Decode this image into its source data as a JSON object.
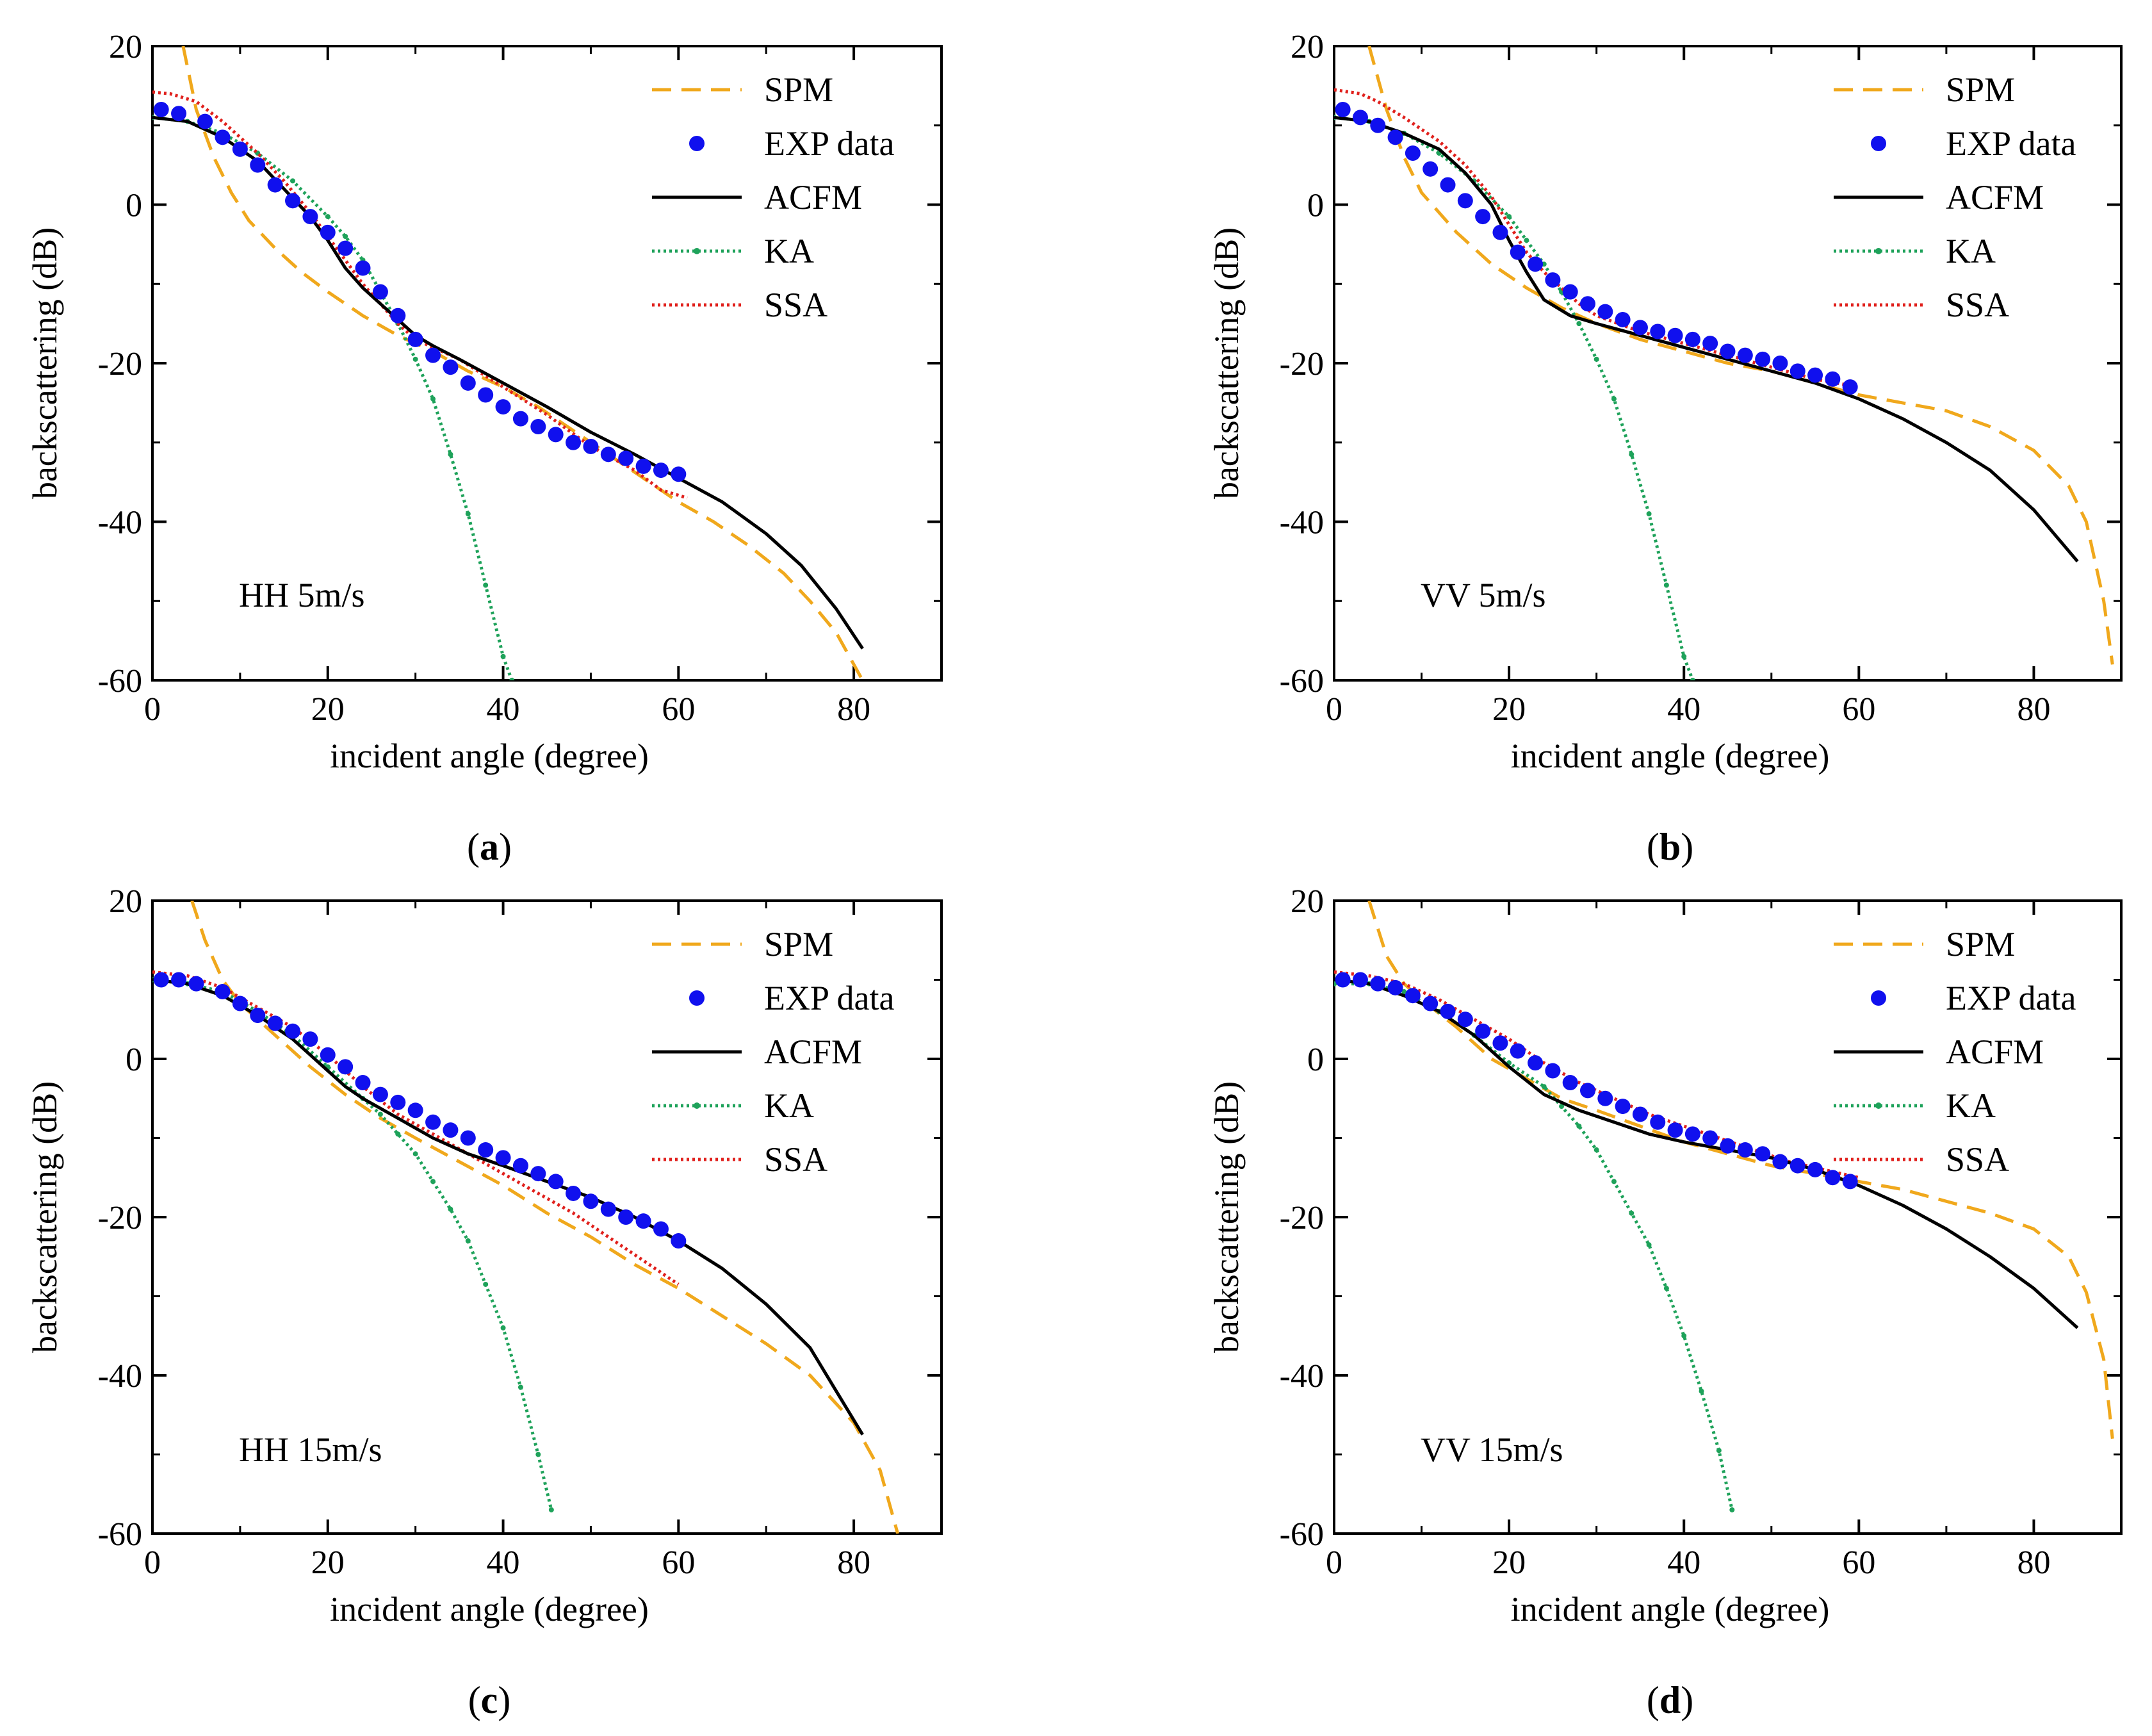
{
  "colors": {
    "SPM": "#F0A81C",
    "EXP data": "#1010EE",
    "ACFM": "#000000",
    "KA": "#1EA25A",
    "SSA": "#E0201C"
  },
  "chart_data": [
    {
      "type": "line",
      "panel_label": "a",
      "annotation": "HH 5m/s",
      "xlabel": "incident angle (degree)",
      "ylabel": "backscattering (dB)",
      "xlim": [
        0,
        90
      ],
      "ylim": [
        -60,
        20
      ],
      "xticks": [
        "0",
        "20",
        "40",
        "60",
        "80"
      ],
      "yticks": [
        "20",
        "0",
        "-20",
        "-40",
        "-60"
      ],
      "legend": [
        "SPM",
        "EXP data",
        "ACFM",
        "KA",
        "SSA"
      ],
      "series": [
        {
          "name": "SPM",
          "style": "dashed",
          "x": [
            3.5,
            5,
            7,
            9,
            11,
            14,
            17,
            20,
            24,
            28,
            32,
            36,
            40,
            44,
            48,
            52,
            56,
            60,
            64,
            68,
            72,
            75,
            78,
            80,
            81
          ],
          "y": [
            20,
            12,
            6,
            1.5,
            -2,
            -5.5,
            -8.5,
            -11,
            -14,
            -16.5,
            -18.5,
            -21,
            -23,
            -25.5,
            -28.5,
            -31.5,
            -34.5,
            -37.5,
            -40,
            -43,
            -46.5,
            -50,
            -54,
            -58,
            -60
          ]
        },
        {
          "name": "EXP data",
          "style": "markers",
          "x": [
            1,
            3,
            6,
            8,
            10,
            12,
            14,
            16,
            18,
            20,
            22,
            24,
            26,
            28,
            30,
            32,
            34,
            36,
            38,
            40,
            42,
            44,
            46,
            48,
            50,
            52,
            54,
            56,
            58,
            60
          ],
          "y": [
            12,
            11.5,
            10.5,
            8.5,
            7,
            5,
            2.5,
            0.5,
            -1.5,
            -3.5,
            -5.5,
            -8,
            -11,
            -14,
            -17,
            -19,
            -20.5,
            -22.5,
            -24,
            -25.5,
            -27,
            -28,
            -29,
            -30,
            -30.5,
            -31.5,
            -32,
            -33,
            -33.5,
            -34
          ]
        },
        {
          "name": "ACFM",
          "style": "solid",
          "x": [
            0,
            4,
            8,
            12,
            15,
            18,
            20,
            22,
            24,
            26,
            28,
            30,
            32,
            35,
            40,
            45,
            50,
            55,
            60,
            65,
            70,
            74,
            78,
            81
          ],
          "y": [
            11,
            10.5,
            8.5,
            5.5,
            2,
            -1.5,
            -4.5,
            -8,
            -10.5,
            -12.5,
            -14.5,
            -16.5,
            -17.8,
            -19.5,
            -22.5,
            -25.5,
            -28.7,
            -31.5,
            -34.5,
            -37.5,
            -41.5,
            -45.5,
            -51,
            -56
          ]
        },
        {
          "name": "KA",
          "style": "dotted",
          "x": [
            0,
            4,
            8,
            12,
            16,
            20,
            22,
            24,
            26,
            28,
            30,
            32,
            34,
            36,
            38,
            40,
            41
          ],
          "y": [
            11,
            10.5,
            9,
            6.5,
            3,
            -1.5,
            -4,
            -7,
            -11,
            -15,
            -19.5,
            -24.5,
            -31.5,
            -39,
            -48,
            -57,
            -60
          ]
        },
        {
          "name": "SSA",
          "style": "dotted",
          "x": [
            0,
            2,
            5,
            8,
            12,
            15,
            18,
            20,
            22,
            24,
            26,
            28,
            30,
            35,
            40,
            45,
            50,
            55,
            58,
            61
          ],
          "y": [
            14.2,
            14,
            13,
            10.5,
            6.5,
            3,
            -1,
            -4,
            -7,
            -10,
            -12.5,
            -15,
            -17,
            -19.5,
            -23,
            -26.5,
            -30.5,
            -33.5,
            -36,
            -37
          ]
        }
      ]
    },
    {
      "type": "line",
      "panel_label": "b",
      "annotation": "VV 5m/s",
      "xlabel": "incident angle (degree)",
      "ylabel": "backscattering (dB)",
      "xlim": [
        0,
        90
      ],
      "ylim": [
        -60,
        20
      ],
      "xticks": [
        "0",
        "20",
        "40",
        "60",
        "80"
      ],
      "yticks": [
        "20",
        "0",
        "-20",
        "-40",
        "-60"
      ],
      "legend": [
        "SPM",
        "EXP data",
        "ACFM",
        "KA",
        "SSA"
      ],
      "series": [
        {
          "name": "SPM",
          "style": "dashed",
          "x": [
            4,
            6,
            8,
            10,
            14,
            18,
            22,
            26,
            30,
            35,
            40,
            45,
            50,
            55,
            60,
            65,
            70,
            75,
            80,
            84,
            86,
            88,
            89
          ],
          "y": [
            20,
            12,
            6,
            1.5,
            -3.5,
            -7.5,
            -10.5,
            -13,
            -15,
            -17,
            -18.5,
            -20,
            -21,
            -22.5,
            -24,
            -25,
            -26,
            -28,
            -31,
            -35.5,
            -40,
            -50,
            -58
          ]
        },
        {
          "name": "EXP data",
          "style": "markers",
          "x": [
            1,
            3,
            5,
            7,
            9,
            11,
            13,
            15,
            17,
            19,
            21,
            23,
            25,
            27,
            29,
            31,
            33,
            35,
            37,
            39,
            41,
            43,
            45,
            47,
            49,
            51,
            53,
            55,
            57,
            59
          ],
          "y": [
            12,
            11,
            10,
            8.5,
            6.5,
            4.5,
            2.5,
            0.5,
            -1.5,
            -3.5,
            -6,
            -7.5,
            -9.5,
            -11,
            -12.5,
            -13.5,
            -14.5,
            -15.5,
            -16,
            -16.5,
            -17,
            -17.5,
            -18.5,
            -19,
            -19.5,
            -20,
            -21,
            -21.5,
            -22,
            -23
          ]
        },
        {
          "name": "ACFM",
          "style": "solid",
          "x": [
            0,
            4,
            8,
            12,
            15,
            18,
            20,
            22,
            24,
            27,
            30,
            35,
            40,
            45,
            50,
            55,
            60,
            65,
            70,
            75,
            80,
            85
          ],
          "y": [
            11,
            10.5,
            9,
            7,
            4,
            0,
            -4.5,
            -8.5,
            -12,
            -14,
            -15,
            -16.5,
            -18,
            -19.5,
            -21,
            -22.5,
            -24.5,
            -27,
            -30,
            -33.5,
            -38.5,
            -45
          ]
        },
        {
          "name": "KA",
          "style": "dotted",
          "x": [
            0,
            4,
            8,
            12,
            16,
            20,
            22,
            24,
            26,
            28,
            30,
            32,
            34,
            36,
            38,
            40,
            41
          ],
          "y": [
            11,
            10.5,
            9,
            6.5,
            3,
            -1.5,
            -4.5,
            -7.5,
            -11,
            -15,
            -19.5,
            -24.5,
            -31.5,
            -39,
            -48,
            -57,
            -60
          ]
        },
        {
          "name": "SSA",
          "style": "dotted",
          "x": [
            0,
            3,
            5,
            8,
            12,
            15,
            18,
            20,
            22,
            24,
            26,
            28,
            30,
            35,
            40,
            45,
            50,
            55,
            60
          ],
          "y": [
            14.5,
            14,
            13,
            11,
            8,
            5,
            1,
            -2.5,
            -6,
            -8.5,
            -10.5,
            -12.5,
            -14,
            -16,
            -17.5,
            -19,
            -20.5,
            -22,
            -23
          ]
        }
      ]
    },
    {
      "type": "line",
      "panel_label": "c",
      "annotation": "HH 15m/s",
      "xlabel": "incident angle (degree)",
      "ylabel": "backscattering (dB)",
      "xlim": [
        0,
        90
      ],
      "ylim": [
        -60,
        20
      ],
      "xticks": [
        "0",
        "20",
        "40",
        "60",
        "80"
      ],
      "yticks": [
        "20",
        "0",
        "-20",
        "-40",
        "-60"
      ],
      "legend": [
        "SPM",
        "EXP data",
        "ACFM",
        "KA",
        "SSA"
      ],
      "series": [
        {
          "name": "SPM",
          "style": "dashed",
          "x": [
            4.5,
            6,
            8,
            10,
            14,
            18,
            22,
            26,
            30,
            35,
            40,
            45,
            50,
            55,
            60,
            65,
            70,
            75,
            80,
            83,
            85
          ],
          "y": [
            20,
            15,
            10,
            7,
            3,
            -1,
            -4.5,
            -7.5,
            -10,
            -13,
            -16,
            -19.5,
            -22.5,
            -26,
            -29,
            -32.5,
            -36,
            -40,
            -46,
            -52,
            -60
          ]
        },
        {
          "name": "EXP data",
          "style": "markers",
          "x": [
            1,
            3,
            5,
            8,
            10,
            12,
            14,
            16,
            18,
            20,
            22,
            24,
            26,
            28,
            30,
            32,
            34,
            36,
            38,
            40,
            42,
            44,
            46,
            48,
            50,
            52,
            54,
            56,
            58,
            60
          ],
          "y": [
            10,
            10,
            9.5,
            8.5,
            7,
            5.5,
            4.5,
            3.5,
            2.5,
            0.5,
            -1,
            -3,
            -4.5,
            -5.5,
            -6.5,
            -8,
            -9,
            -10,
            -11.5,
            -12.5,
            -13.5,
            -14.5,
            -15.5,
            -17,
            -18,
            -19,
            -20,
            -20.5,
            -21.5,
            -23
          ]
        },
        {
          "name": "ACFM",
          "style": "solid",
          "x": [
            0,
            4,
            8,
            12,
            16,
            18,
            20,
            22,
            24,
            28,
            32,
            36,
            40,
            45,
            50,
            55,
            60,
            65,
            70,
            75,
            78,
            81
          ],
          "y": [
            10,
            9.5,
            8,
            5.5,
            2.5,
            0.5,
            -1.5,
            -3.5,
            -5,
            -7.5,
            -10,
            -12,
            -13.5,
            -15.5,
            -17.5,
            -20,
            -23,
            -26.5,
            -31,
            -36.5,
            -42,
            -47.5
          ]
        },
        {
          "name": "KA",
          "style": "dotted",
          "x": [
            0,
            4,
            8,
            12,
            16,
            20,
            24,
            26,
            28,
            30,
            32,
            34,
            36,
            38,
            40,
            42,
            44,
            45.5
          ],
          "y": [
            10,
            9.5,
            8.5,
            6,
            3,
            -1,
            -5,
            -7,
            -9.5,
            -12,
            -15.5,
            -19,
            -23,
            -28.5,
            -34,
            -41.5,
            -50,
            -57
          ]
        },
        {
          "name": "SSA",
          "style": "dotted",
          "x": [
            0,
            4,
            8,
            12,
            16,
            20,
            24,
            28,
            32,
            36,
            40,
            44,
            48,
            52,
            56,
            60
          ],
          "y": [
            11,
            10.5,
            9,
            6.5,
            4,
            0.5,
            -3.5,
            -7,
            -9.5,
            -12,
            -14.5,
            -17,
            -19.5,
            -22.5,
            -25.5,
            -28.5
          ]
        }
      ]
    },
    {
      "type": "line",
      "panel_label": "d",
      "annotation": "VV 15m/s",
      "xlabel": "incident angle (degree)",
      "ylabel": "backscattering (dB)",
      "xlim": [
        0,
        90
      ],
      "ylim": [
        -60,
        20
      ],
      "xticks": [
        "0",
        "20",
        "40",
        "60",
        "80"
      ],
      "yticks": [
        "20",
        "0",
        "-20",
        "-40",
        "-60"
      ],
      "legend": [
        "SPM",
        "EXP data",
        "ACFM",
        "KA",
        "SSA"
      ],
      "series": [
        {
          "name": "SPM",
          "style": "dashed",
          "x": [
            4,
            6,
            8,
            10,
            14,
            18,
            22,
            26,
            30,
            35,
            40,
            45,
            50,
            55,
            60,
            65,
            70,
            75,
            80,
            84,
            86,
            88,
            89
          ],
          "y": [
            20,
            13,
            9.5,
            7.5,
            4,
            0,
            -2.5,
            -5,
            -6.5,
            -8.5,
            -10.5,
            -12,
            -13.5,
            -14.5,
            -15.5,
            -16.5,
            -18,
            -19.5,
            -21.5,
            -25,
            -29.5,
            -38,
            -48
          ]
        },
        {
          "name": "EXP data",
          "style": "markers",
          "x": [
            1,
            3,
            5,
            7,
            9,
            11,
            13,
            15,
            17,
            19,
            21,
            23,
            25,
            27,
            29,
            31,
            33,
            35,
            37,
            39,
            41,
            43,
            45,
            47,
            49,
            51,
            53,
            55,
            57,
            59
          ],
          "y": [
            10,
            10,
            9.5,
            9,
            8,
            7,
            6,
            5,
            3.5,
            2,
            1,
            -0.5,
            -1.5,
            -3,
            -4,
            -5,
            -6,
            -7,
            -8,
            -9,
            -9.5,
            -10,
            -11,
            -11.5,
            -12,
            -13,
            -13.5,
            -14,
            -15,
            -15.5
          ]
        },
        {
          "name": "ACFM",
          "style": "solid",
          "x": [
            0,
            4,
            8,
            12,
            16,
            20,
            24,
            28,
            32,
            36,
            40,
            45,
            50,
            55,
            60,
            65,
            70,
            75,
            80,
            85
          ],
          "y": [
            10,
            9.5,
            8,
            6,
            3,
            -1,
            -4.5,
            -6.5,
            -8,
            -9.5,
            -10.5,
            -11.5,
            -12.5,
            -14,
            -16,
            -18.5,
            -21.5,
            -25,
            -29,
            -34
          ]
        },
        {
          "name": "KA",
          "style": "dotted",
          "x": [
            0,
            4,
            8,
            12,
            16,
            20,
            24,
            26,
            28,
            30,
            32,
            34,
            36,
            38,
            40,
            42,
            44,
            45.5
          ],
          "y": [
            9.5,
            9.5,
            8.5,
            6,
            3,
            -0.5,
            -3.5,
            -6,
            -8.5,
            -11.5,
            -15.5,
            -19.5,
            -23.5,
            -29,
            -35,
            -42,
            -49.5,
            -57
          ]
        },
        {
          "name": "SSA",
          "style": "dotted",
          "x": [
            0,
            4,
            8,
            12,
            16,
            20,
            24,
            28,
            32,
            36,
            40,
            44,
            48,
            52,
            56,
            60
          ],
          "y": [
            11,
            10.5,
            9.5,
            7.5,
            5,
            2.5,
            -0.5,
            -3,
            -5,
            -7,
            -8.5,
            -10,
            -11.5,
            -13,
            -14,
            -15
          ]
        }
      ]
    }
  ]
}
